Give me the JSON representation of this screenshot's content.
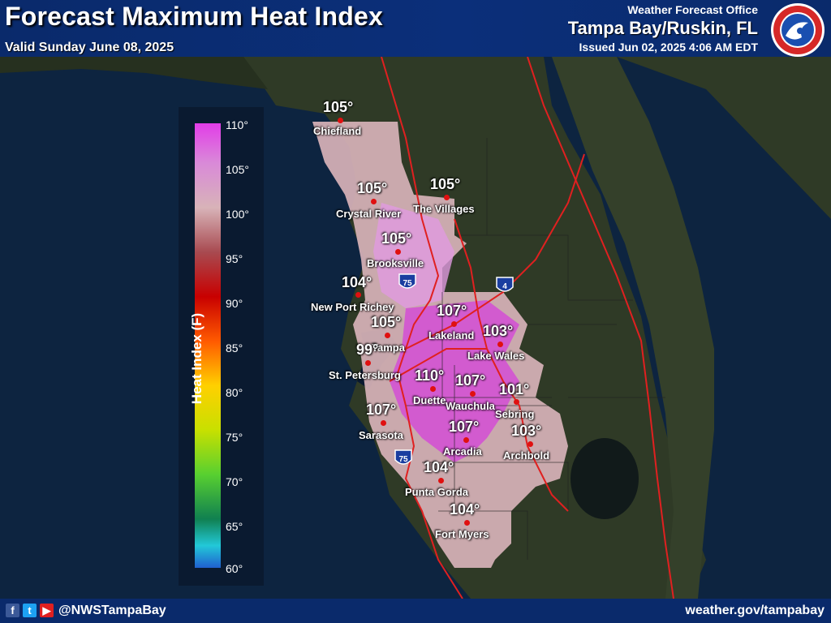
{
  "header": {
    "title": "Forecast Maximum Heat Index",
    "valid": "Valid Sunday June 08, 2025",
    "office_top": "Weather Forecast Office",
    "office_name": "Tampa Bay/Ruskin, FL",
    "issued": "Issued Jun 02, 2025 4:06 AM EDT",
    "logo_icon": "nws-logo-icon"
  },
  "legend": {
    "title": "Heat Index (F)",
    "ticks": [
      "110°",
      "105°",
      "100°",
      "95°",
      "90°",
      "85°",
      "80°",
      "75°",
      "70°",
      "65°",
      "60°"
    ]
  },
  "cities": [
    {
      "name": "Chiefland",
      "value": "105°"
    },
    {
      "name": "Crystal River",
      "value": "105°"
    },
    {
      "name": "The Villages",
      "value": "105°"
    },
    {
      "name": "Brooksville",
      "value": "105°"
    },
    {
      "name": "New Port Richey",
      "value": "104°"
    },
    {
      "name": "Lakeland",
      "value": "107°"
    },
    {
      "name": "Tampa",
      "value": "105°"
    },
    {
      "name": "Lake Wales",
      "value": "103°"
    },
    {
      "name": "St. Petersburg",
      "value": "99°"
    },
    {
      "name": "Duette",
      "value": "110°"
    },
    {
      "name": "Wauchula",
      "value": "107°"
    },
    {
      "name": "Sebring",
      "value": "101°"
    },
    {
      "name": "Sarasota",
      "value": "107°"
    },
    {
      "name": "Arcadia",
      "value": "107°"
    },
    {
      "name": "Archbold",
      "value": "103°"
    },
    {
      "name": "Punta Gorda",
      "value": "104°"
    },
    {
      "name": "Fort Myers",
      "value": "104°"
    }
  ],
  "shields": [
    "75",
    "4",
    "75"
  ],
  "footer": {
    "handle": "@NWSTampaBay",
    "website": "weather.gov/tampabay",
    "social_icons": [
      "facebook-icon",
      "twitter-icon",
      "youtube-icon"
    ]
  },
  "colors": {
    "header_bg": "#0a2a6b",
    "marker": "#e01010",
    "highway": "#e02020",
    "heat_high": "#e23de8",
    "heat_mid": "#d8b3b8"
  }
}
